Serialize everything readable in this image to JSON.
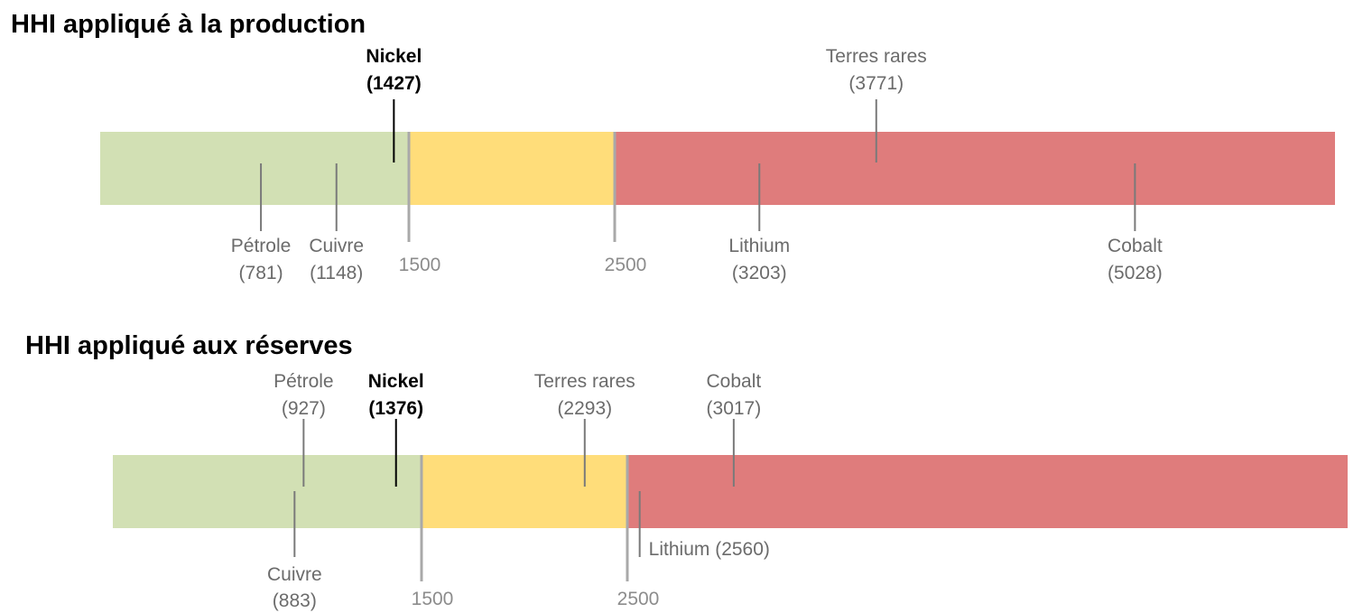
{
  "chart_data": [
    {
      "type": "bar",
      "title": "HHI appliqué à la production",
      "xlim": [
        0,
        6000
      ],
      "zones": [
        {
          "from": 0,
          "to": 1500,
          "color": "#d2e0b4"
        },
        {
          "from": 1500,
          "to": 2500,
          "color": "#ffdd7a"
        },
        {
          "from": 2500,
          "to": 6000,
          "color": "#df7c7c"
        }
      ],
      "thresholds": [
        {
          "value": 1500,
          "label": "1500"
        },
        {
          "value": 2500,
          "label": "2500"
        }
      ],
      "points": [
        {
          "name": "Pétrole",
          "value": 781,
          "value_label": "(781)",
          "side": "below",
          "highlight": false
        },
        {
          "name": "Cuivre",
          "value": 1148,
          "value_label": "(1148)",
          "side": "below",
          "highlight": false
        },
        {
          "name": "Nickel",
          "value": 1427,
          "value_label": "(1427)",
          "side": "above",
          "highlight": true
        },
        {
          "name": "Lithium",
          "value": 3203,
          "value_label": "(3203)",
          "side": "below",
          "highlight": false
        },
        {
          "name": "Terres rares",
          "value": 3771,
          "value_label": "(3771)",
          "side": "above",
          "highlight": false
        },
        {
          "name": "Cobalt",
          "value": 5028,
          "value_label": "(5028)",
          "side": "below",
          "highlight": false
        }
      ]
    },
    {
      "type": "bar",
      "title": "HHI appliqué aux réserves",
      "xlim": [
        0,
        6000
      ],
      "zones": [
        {
          "from": 0,
          "to": 1500,
          "color": "#d2e0b4"
        },
        {
          "from": 1500,
          "to": 2500,
          "color": "#ffdd7a"
        },
        {
          "from": 2500,
          "to": 6000,
          "color": "#df7c7c"
        }
      ],
      "thresholds": [
        {
          "value": 1500,
          "label": "1500"
        },
        {
          "value": 2500,
          "label": "2500"
        }
      ],
      "points": [
        {
          "name": "Cuivre",
          "value": 883,
          "value_label": "(883)",
          "side": "below",
          "highlight": false
        },
        {
          "name": "Pétrole",
          "value": 927,
          "value_label": "(927)",
          "side": "above",
          "highlight": false
        },
        {
          "name": "Nickel",
          "value": 1376,
          "value_label": "(1376)",
          "side": "above",
          "highlight": true
        },
        {
          "name": "Terres rares",
          "value": 2293,
          "value_label": "(2293)",
          "side": "above",
          "highlight": false
        },
        {
          "name": "Lithium",
          "value": 2560,
          "value_label": "Lithium (2560)",
          "side": "below-inline",
          "highlight": false
        },
        {
          "name": "Cobalt",
          "value": 3017,
          "value_label": "(3017)",
          "side": "above",
          "highlight": false
        }
      ]
    }
  ]
}
